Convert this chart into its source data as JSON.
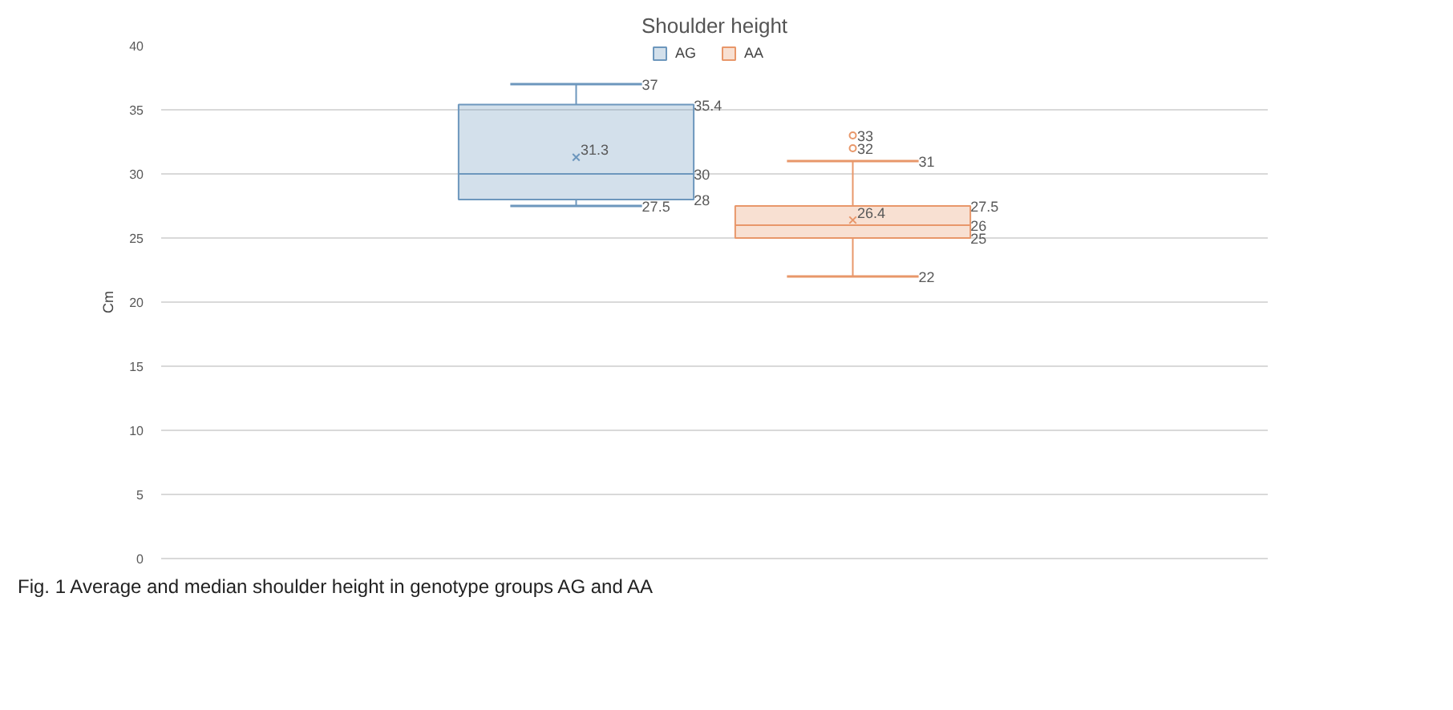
{
  "chart_data": {
    "type": "box",
    "title": "Shoulder height",
    "ylabel": "Cm",
    "categories": [
      null
    ],
    "series": [
      {
        "name": "AG",
        "color": "#6d97bd",
        "boxes": [
          {
            "low": 27.5,
            "q1": 28,
            "median": 30,
            "q3": 35.4,
            "high": 37,
            "mean": 31.3
          }
        ]
      },
      {
        "name": "AA",
        "color": "#e8976a",
        "boxes": [
          {
            "low": 22,
            "q1": 25,
            "median": 26,
            "q3": 27.5,
            "high": 31,
            "mean": 26.4,
            "outliers": [
              33,
              32
            ]
          }
        ]
      }
    ],
    "ylim": [
      0,
      40
    ],
    "yticks": [
      0,
      5,
      10,
      15,
      20,
      25,
      30,
      35,
      40
    ],
    "grid": "y",
    "legend": "top",
    "tick_labels": "y",
    "annotations": [
      "Fig. 1 Average and median shoulder height in genotype groups AG and AA",
      "37",
      "35.4",
      "31.3",
      "30",
      "28",
      "27.5",
      "33",
      "32",
      "31",
      "27.5",
      "26.4",
      "26",
      "25",
      "22"
    ]
  }
}
